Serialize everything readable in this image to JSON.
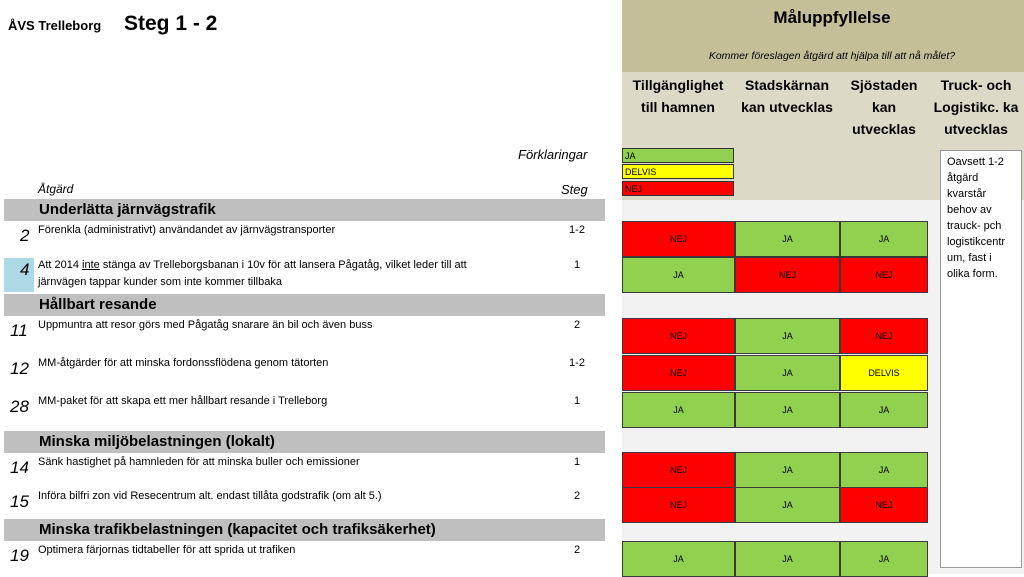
{
  "header": {
    "org": "ÅVS Trelleborg",
    "steg": "Steg 1 - 2"
  },
  "goal": {
    "title": "Måluppfyllelse",
    "subtitle": "Kommer föreslagen åtgärd att hjälpa till att nå målet?",
    "columns": [
      {
        "l1": "Tillgänglighet",
        "l2": "till hamnen",
        "l3": ""
      },
      {
        "l1": "Stadskärnan",
        "l2": "kan utvecklas",
        "l3": ""
      },
      {
        "l1": "Sjöstaden",
        "l2": "kan",
        "l3": "utvecklas"
      },
      {
        "l1": "Truck- och",
        "l2": "Logistikc. ka",
        "l3": "utvecklas"
      }
    ]
  },
  "legend": {
    "title": "Förklaringar",
    "items": [
      {
        "label": "JA",
        "color": "#92d050"
      },
      {
        "label": "DELVIS",
        "color": "#ffff00"
      },
      {
        "label": "NEJ",
        "color": "#ff0000"
      }
    ]
  },
  "table_headers": {
    "atgard": "Åtgärd",
    "steg": "Steg"
  },
  "sections": {
    "s1": "Underlätta järnvägstrafik",
    "s2": "Hållbart resande",
    "s3": "Minska miljöbelastningen (lokalt)",
    "s4": "Minska trafikbelastningen (kapacitet och trafiksäkerhet)"
  },
  "rows": {
    "r2": {
      "num": "2",
      "text": "Förenkla (administrativt) användandet av järnvägstransporter",
      "steg": "1-2",
      "cells": [
        "NEJ",
        "JA",
        "JA"
      ]
    },
    "r4": {
      "num": "4",
      "text_a": "Att 2014 ",
      "text_u": "inte",
      "text_b": " stänga av Trelleborgsbanan i 10v för att lansera Pågatåg, vilket leder till att",
      "text_line2": "järnvägen tappar kunder som inte kommer tillbaka",
      "steg": "1",
      "cells": [
        "JA",
        "NEJ",
        "NEJ"
      ]
    },
    "r11": {
      "num": "11",
      "text": "Uppmuntra att resor görs med Pågatåg snarare än bil och även buss",
      "steg": "2",
      "cells": [
        "NEJ",
        "JA",
        "NEJ"
      ]
    },
    "r12": {
      "num": "12",
      "text": "MM-åtgärder för att minska fordonssflödena genom tätorten",
      "steg": "1-2",
      "cells": [
        "NEJ",
        "JA",
        "DELVIS"
      ]
    },
    "r28": {
      "num": "28",
      "text": "MM-paket för att skapa ett mer hållbart resande i Trelleborg",
      "steg": "1",
      "cells": [
        "JA",
        "JA",
        "JA"
      ]
    },
    "r14": {
      "num": "14",
      "text": "Sänk hastighet på hamnleden för att minska buller och emissioner",
      "steg": "1",
      "cells": [
        "NEJ",
        "JA",
        "JA"
      ]
    },
    "r15": {
      "num": "15",
      "text": "Införa bilfri zon vid Resecentrum alt. endast tillåta godstrafik (om alt 5.)",
      "steg": "2",
      "cells": [
        "NEJ",
        "JA",
        "NEJ"
      ]
    },
    "r19": {
      "num": "19",
      "text": "Optimera färjornas tidtabeller  för att sprida ut trafiken",
      "steg": "2",
      "cells": [
        "JA",
        "JA",
        "JA"
      ]
    }
  },
  "note": {
    "l1": "Oavsett 1-2",
    "l2": "åtgärd",
    "l3": "kvarstår",
    "l4": "behov av",
    "l5": "trauck- pch",
    "l6": "logistikcentr",
    "l7": "um, fast i",
    "l8": "olika form."
  }
}
